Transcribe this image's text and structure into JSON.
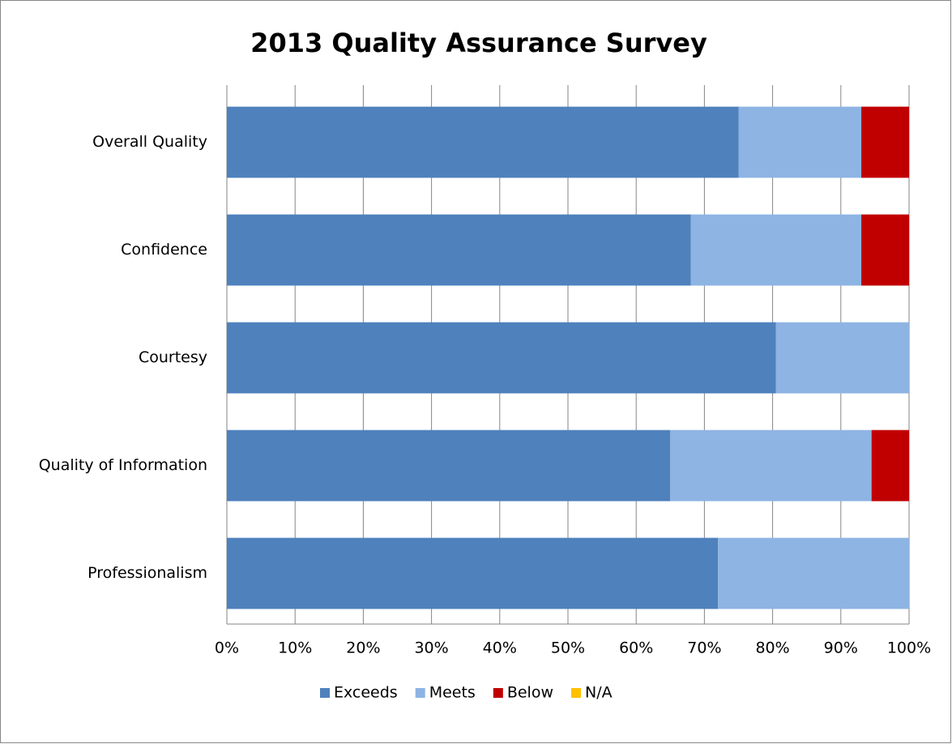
{
  "chart_data": {
    "type": "stacked-bar-horizontal",
    "title": "2013 Quality Assurance Survey",
    "categories": [
      "Overall Quality",
      "Confidence",
      "Courtesy",
      "Quality of Information",
      "Professionalism"
    ],
    "series": [
      {
        "name": "Exceeds",
        "color": "#4f81bd",
        "values": [
          75,
          68,
          80.5,
          65,
          72
        ]
      },
      {
        "name": "Meets",
        "color": "#8eb4e3",
        "values": [
          18,
          25,
          19.5,
          29.5,
          28
        ]
      },
      {
        "name": "Below",
        "color": "#c00000",
        "values": [
          7,
          7,
          0,
          5.5,
          0
        ]
      },
      {
        "name": "N/A",
        "color": "#ffc000",
        "values": [
          0,
          0,
          0,
          0,
          0
        ]
      }
    ],
    "xlim": [
      0,
      100
    ],
    "xticks": [
      {
        "value": 0,
        "label": "0%"
      },
      {
        "value": 10,
        "label": "10%"
      },
      {
        "value": 20,
        "label": "20%"
      },
      {
        "value": 30,
        "label": "30%"
      },
      {
        "value": 40,
        "label": "40%"
      },
      {
        "value": 50,
        "label": "50%"
      },
      {
        "value": 60,
        "label": "60%"
      },
      {
        "value": 70,
        "label": "70%"
      },
      {
        "value": 80,
        "label": "80%"
      },
      {
        "value": 90,
        "label": "90%"
      },
      {
        "value": 100,
        "label": "100%"
      }
    ],
    "grid": true,
    "legend": "bottom"
  }
}
